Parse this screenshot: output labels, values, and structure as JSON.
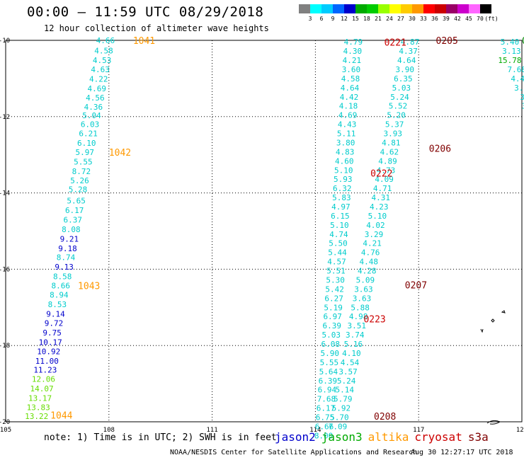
{
  "header": {
    "title": "00:00 — 11:59 UTC 08/29/2018",
    "subtitle": "12 hour collection of altimeter wave heights"
  },
  "colorbar": {
    "colors": [
      "#808080",
      "#00ffff",
      "#00ccff",
      "#0066ff",
      "#0000cc",
      "#00aa00",
      "#00cc00",
      "#99ff00",
      "#ffff00",
      "#ffcc00",
      "#ff9900",
      "#ff0000",
      "#cc0000",
      "#990066",
      "#cc00cc",
      "#ff66ff",
      "#000000"
    ],
    "labels": [
      "3",
      "6",
      "9",
      "12",
      "15",
      "18",
      "21",
      "24",
      "27",
      "30",
      "33",
      "36",
      "39",
      "42",
      "45",
      "70",
      "(ft)"
    ]
  },
  "chart_data": {
    "type": "scatter",
    "x_ticks": [
      "105",
      "108",
      "111",
      "114",
      "117",
      "120"
    ],
    "y_ticks": [
      "-10",
      "-12",
      "-14",
      "-16",
      "-18",
      "-20"
    ],
    "xlim": [
      105,
      120
    ],
    "ylim": [
      -20,
      -10
    ],
    "grid": true,
    "tracks": [
      {
        "satellite": "altika",
        "color": "#ff9900",
        "labels": [
          {
            "text": "1041",
            "lon": 108.7,
            "lat": -10.0
          },
          {
            "text": "1042",
            "lon": 108.0,
            "lat": -12.93
          },
          {
            "text": "1043",
            "lon": 107.1,
            "lat": -16.43
          },
          {
            "text": "1044",
            "lon": 106.3,
            "lat": -19.82
          }
        ]
      },
      {
        "satellite": "cryosat",
        "color": "#cc0000",
        "labels": [
          {
            "text": "0221",
            "lon": 116.0,
            "lat": -10.05
          },
          {
            "text": "0222",
            "lon": 115.6,
            "lat": -13.48
          },
          {
            "text": "0223",
            "lon": 115.4,
            "lat": -17.3
          }
        ]
      },
      {
        "satellite": "s3a",
        "color": "#800000",
        "labels": [
          {
            "text": "0205",
            "lon": 117.5,
            "lat": -10.0
          },
          {
            "text": "0206",
            "lon": 117.3,
            "lat": -12.83
          },
          {
            "text": "0207",
            "lon": 116.6,
            "lat": -16.41
          },
          {
            "text": "0208",
            "lon": 115.7,
            "lat": -19.85
          }
        ]
      },
      {
        "satellite": "jason3",
        "color": "#008800",
        "labels": [
          {
            "text": "0",
            "lon": 120.0,
            "lat": -10.0
          }
        ]
      }
    ],
    "points": [
      {
        "text": "4.66",
        "lon": 107.9,
        "lat": -10.0,
        "c": "#00cccc"
      },
      {
        "text": "4.58",
        "lon": 107.85,
        "lat": -10.27,
        "c": "#00cccc"
      },
      {
        "text": "4.53",
        "lon": 107.8,
        "lat": -10.52,
        "c": "#00cccc"
      },
      {
        "text": "4.63",
        "lon": 107.75,
        "lat": -10.76,
        "c": "#00cccc"
      },
      {
        "text": "4.22",
        "lon": 107.7,
        "lat": -11.01,
        "c": "#00cccc"
      },
      {
        "text": "4.69",
        "lon": 107.65,
        "lat": -11.26,
        "c": "#00cccc"
      },
      {
        "text": "4.56",
        "lon": 107.6,
        "lat": -11.5,
        "c": "#00cccc"
      },
      {
        "text": "4.36",
        "lon": 107.55,
        "lat": -11.74,
        "c": "#00cccc"
      },
      {
        "text": "5.04",
        "lon": 107.5,
        "lat": -11.97,
        "c": "#00cccc"
      },
      {
        "text": "6.03",
        "lon": 107.45,
        "lat": -12.2,
        "c": "#00cccc"
      },
      {
        "text": "6.21",
        "lon": 107.4,
        "lat": -12.44,
        "c": "#00cccc"
      },
      {
        "text": "6.10",
        "lon": 107.35,
        "lat": -12.69,
        "c": "#00cccc"
      },
      {
        "text": "5.97",
        "lon": 107.3,
        "lat": -12.93,
        "c": "#00cccc"
      },
      {
        "text": "5.55",
        "lon": 107.25,
        "lat": -13.18,
        "c": "#00cccc"
      },
      {
        "text": "8.72",
        "lon": 107.2,
        "lat": -13.43,
        "c": "#00cccc"
      },
      {
        "text": "5.26",
        "lon": 107.15,
        "lat": -13.67,
        "c": "#00cccc"
      },
      {
        "text": "5.28",
        "lon": 107.1,
        "lat": -13.91,
        "c": "#00cccc"
      },
      {
        "text": "5.65",
        "lon": 107.05,
        "lat": -14.2,
        "c": "#00cccc"
      },
      {
        "text": "6.17",
        "lon": 107.0,
        "lat": -14.45,
        "c": "#00cccc"
      },
      {
        "text": "6.37",
        "lon": 106.95,
        "lat": -14.7,
        "c": "#00cccc"
      },
      {
        "text": "8.08",
        "lon": 106.9,
        "lat": -14.95,
        "c": "#00cccc"
      },
      {
        "text": "9.21",
        "lon": 106.85,
        "lat": -15.2,
        "c": "#0000cc"
      },
      {
        "text": "9.18",
        "lon": 106.8,
        "lat": -15.45,
        "c": "#0000cc"
      },
      {
        "text": "8.74",
        "lon": 106.75,
        "lat": -15.69,
        "c": "#00cccc"
      },
      {
        "text": "9.13",
        "lon": 106.7,
        "lat": -15.94,
        "c": "#0000cc"
      },
      {
        "text": "8.58",
        "lon": 106.65,
        "lat": -16.19,
        "c": "#00cccc"
      },
      {
        "text": "8.66",
        "lon": 106.6,
        "lat": -16.43,
        "c": "#00cccc"
      },
      {
        "text": "8.94",
        "lon": 106.55,
        "lat": -16.67,
        "c": "#00cccc"
      },
      {
        "text": "8.53",
        "lon": 106.5,
        "lat": -16.92,
        "c": "#00cccc"
      },
      {
        "text": "9.14",
        "lon": 106.45,
        "lat": -17.17,
        "c": "#0000cc"
      },
      {
        "text": "9.72",
        "lon": 106.4,
        "lat": -17.41,
        "c": "#0000cc"
      },
      {
        "text": "9.75",
        "lon": 106.35,
        "lat": -17.66,
        "c": "#0000cc"
      },
      {
        "text": "10.17",
        "lon": 106.3,
        "lat": -17.91,
        "c": "#0000cc"
      },
      {
        "text": "10.92",
        "lon": 106.25,
        "lat": -18.15,
        "c": "#0000cc"
      },
      {
        "text": "11.00",
        "lon": 106.2,
        "lat": -18.4,
        "c": "#0000cc"
      },
      {
        "text": "11.23",
        "lon": 106.15,
        "lat": -18.64,
        "c": "#0000cc"
      },
      {
        "text": "12.06",
        "lon": 106.1,
        "lat": -18.88,
        "c": "#66dd00"
      },
      {
        "text": "14.07",
        "lon": 106.05,
        "lat": -19.13,
        "c": "#66dd00"
      },
      {
        "text": "13.17",
        "lon": 106.0,
        "lat": -19.38,
        "c": "#66dd00"
      },
      {
        "text": "13.83",
        "lon": 105.95,
        "lat": -19.62,
        "c": "#66dd00"
      },
      {
        "text": "13.22",
        "lon": 105.9,
        "lat": -19.85,
        "c": "#66dd00"
      },
      {
        "text": "4.79",
        "lon": 115.1,
        "lat": -10.04,
        "c": "#00cccc"
      },
      {
        "text": "4.30",
        "lon": 115.08,
        "lat": -10.28,
        "c": "#00cccc"
      },
      {
        "text": "4.21",
        "lon": 115.06,
        "lat": -10.52,
        "c": "#00cccc"
      },
      {
        "text": "3.60",
        "lon": 115.04,
        "lat": -10.76,
        "c": "#00cccc"
      },
      {
        "text": "4.58",
        "lon": 115.02,
        "lat": -11.0,
        "c": "#00cccc"
      },
      {
        "text": "4.64",
        "lon": 115.0,
        "lat": -11.24,
        "c": "#00cccc"
      },
      {
        "text": "4.42",
        "lon": 114.98,
        "lat": -11.48,
        "c": "#00cccc"
      },
      {
        "text": "4.18",
        "lon": 114.96,
        "lat": -11.72,
        "c": "#00cccc"
      },
      {
        "text": "4.69",
        "lon": 114.94,
        "lat": -11.96,
        "c": "#00cccc"
      },
      {
        "text": "4.43",
        "lon": 114.92,
        "lat": -12.2,
        "c": "#00cccc"
      },
      {
        "text": "5.11",
        "lon": 114.9,
        "lat": -12.44,
        "c": "#00cccc"
      },
      {
        "text": "3.80",
        "lon": 114.88,
        "lat": -12.68,
        "c": "#00cccc"
      },
      {
        "text": "4.83",
        "lon": 114.86,
        "lat": -12.92,
        "c": "#00cccc"
      },
      {
        "text": "4.60",
        "lon": 114.84,
        "lat": -13.16,
        "c": "#00cccc"
      },
      {
        "text": "5.10",
        "lon": 114.82,
        "lat": -13.4,
        "c": "#00cccc"
      },
      {
        "text": "5.93",
        "lon": 114.8,
        "lat": -13.64,
        "c": "#00cccc"
      },
      {
        "text": "6.32",
        "lon": 114.78,
        "lat": -13.88,
        "c": "#00cccc"
      },
      {
        "text": "5.83",
        "lon": 114.76,
        "lat": -14.12,
        "c": "#00cccc"
      },
      {
        "text": "4.97",
        "lon": 114.74,
        "lat": -14.36,
        "c": "#00cccc"
      },
      {
        "text": "6.15",
        "lon": 114.72,
        "lat": -14.6,
        "c": "#00cccc"
      },
      {
        "text": "5.10",
        "lon": 114.7,
        "lat": -14.84,
        "c": "#00cccc"
      },
      {
        "text": "4.74",
        "lon": 114.68,
        "lat": -15.08,
        "c": "#00cccc"
      },
      {
        "text": "5.50",
        "lon": 114.66,
        "lat": -15.32,
        "c": "#00cccc"
      },
      {
        "text": "5.44",
        "lon": 114.64,
        "lat": -15.56,
        "c": "#00cccc"
      },
      {
        "text": "4.57",
        "lon": 114.62,
        "lat": -15.8,
        "c": "#00cccc"
      },
      {
        "text": "5.51",
        "lon": 114.6,
        "lat": -16.04,
        "c": "#00cccc"
      },
      {
        "text": "5.30",
        "lon": 114.58,
        "lat": -16.28,
        "c": "#00cccc"
      },
      {
        "text": "5.42",
        "lon": 114.56,
        "lat": -16.52,
        "c": "#00cccc"
      },
      {
        "text": "6.27",
        "lon": 114.54,
        "lat": -16.76,
        "c": "#00cccc"
      },
      {
        "text": "5.19",
        "lon": 114.52,
        "lat": -17.0,
        "c": "#00cccc"
      },
      {
        "text": "6.97",
        "lon": 114.5,
        "lat": -17.24,
        "c": "#00cccc"
      },
      {
        "text": "6.39",
        "lon": 114.48,
        "lat": -17.48,
        "c": "#00cccc"
      },
      {
        "text": "5.03",
        "lon": 114.46,
        "lat": -17.72,
        "c": "#00cccc"
      },
      {
        "text": "6.08",
        "lon": 114.44,
        "lat": -17.96,
        "c": "#00cccc"
      },
      {
        "text": "5.90",
        "lon": 114.42,
        "lat": -18.2,
        "c": "#00cccc"
      },
      {
        "text": "5.55",
        "lon": 114.4,
        "lat": -18.44,
        "c": "#00cccc"
      },
      {
        "text": "5.64",
        "lon": 114.38,
        "lat": -18.68,
        "c": "#00cccc"
      },
      {
        "text": "6.39",
        "lon": 114.36,
        "lat": -18.92,
        "c": "#00cccc"
      },
      {
        "text": "6.94",
        "lon": 114.34,
        "lat": -19.16,
        "c": "#00cccc"
      },
      {
        "text": "7.68",
        "lon": 114.32,
        "lat": -19.4,
        "c": "#00cccc"
      },
      {
        "text": "6.17",
        "lon": 114.3,
        "lat": -19.64,
        "c": "#00cccc"
      },
      {
        "text": "6.75",
        "lon": 114.28,
        "lat": -19.88,
        "c": "#00cccc"
      },
      {
        "text": "6.66",
        "lon": 114.26,
        "lat": -20.12,
        "c": "#00cccc"
      },
      {
        "text": "8.00",
        "lon": 114.24,
        "lat": -20.36,
        "c": "#00cccc"
      },
      {
        "text": "4.87",
        "lon": 116.75,
        "lat": -10.04,
        "c": "#00cccc"
      },
      {
        "text": "4.37",
        "lon": 116.7,
        "lat": -10.28,
        "c": "#00cccc"
      },
      {
        "text": "4.64",
        "lon": 116.65,
        "lat": -10.52,
        "c": "#00cccc"
      },
      {
        "text": "3.90",
        "lon": 116.6,
        "lat": -10.76,
        "c": "#00cccc"
      },
      {
        "text": "6.35",
        "lon": 116.55,
        "lat": -11.0,
        "c": "#00cccc"
      },
      {
        "text": "5.03",
        "lon": 116.5,
        "lat": -11.24,
        "c": "#00cccc"
      },
      {
        "text": "5.24",
        "lon": 116.45,
        "lat": -11.48,
        "c": "#00cccc"
      },
      {
        "text": "5.52",
        "lon": 116.4,
        "lat": -11.72,
        "c": "#00cccc"
      },
      {
        "text": "5.20",
        "lon": 116.35,
        "lat": -11.96,
        "c": "#00cccc"
      },
      {
        "text": "5.37",
        "lon": 116.3,
        "lat": -12.2,
        "c": "#00cccc"
      },
      {
        "text": "3.93",
        "lon": 116.25,
        "lat": -12.44,
        "c": "#00cccc"
      },
      {
        "text": "4.81",
        "lon": 116.2,
        "lat": -12.68,
        "c": "#00cccc"
      },
      {
        "text": "4.62",
        "lon": 116.15,
        "lat": -12.92,
        "c": "#00cccc"
      },
      {
        "text": "4.89",
        "lon": 116.1,
        "lat": -13.16,
        "c": "#00cccc"
      },
      {
        "text": "4.73",
        "lon": 116.05,
        "lat": -13.4,
        "c": "#00cccc"
      },
      {
        "text": "4.09",
        "lon": 116.0,
        "lat": -13.64,
        "c": "#00cccc"
      },
      {
        "text": "4.71",
        "lon": 115.95,
        "lat": -13.88,
        "c": "#00cccc"
      },
      {
        "text": "4.31",
        "lon": 115.9,
        "lat": -14.12,
        "c": "#00cccc"
      },
      {
        "text": "4.23",
        "lon": 115.85,
        "lat": -14.36,
        "c": "#00cccc"
      },
      {
        "text": "5.10",
        "lon": 115.8,
        "lat": -14.6,
        "c": "#00cccc"
      },
      {
        "text": "4.02",
        "lon": 115.75,
        "lat": -14.84,
        "c": "#00cccc"
      },
      {
        "text": "3.29",
        "lon": 115.7,
        "lat": -15.08,
        "c": "#00cccc"
      },
      {
        "text": "4.21",
        "lon": 115.65,
        "lat": -15.32,
        "c": "#00cccc"
      },
      {
        "text": "4.76",
        "lon": 115.6,
        "lat": -15.56,
        "c": "#00cccc"
      },
      {
        "text": "4.48",
        "lon": 115.55,
        "lat": -15.8,
        "c": "#00cccc"
      },
      {
        "text": "4.28",
        "lon": 115.5,
        "lat": -16.04,
        "c": "#00cccc"
      },
      {
        "text": "5.09",
        "lon": 115.45,
        "lat": -16.28,
        "c": "#00cccc"
      },
      {
        "text": "3.63",
        "lon": 115.4,
        "lat": -16.52,
        "c": "#00cccc"
      },
      {
        "text": "3.63",
        "lon": 115.35,
        "lat": -16.76,
        "c": "#00cccc"
      },
      {
        "text": "5.88",
        "lon": 115.3,
        "lat": -17.0,
        "c": "#00cccc"
      },
      {
        "text": "4.98",
        "lon": 115.25,
        "lat": -17.24,
        "c": "#00cccc"
      },
      {
        "text": "3.51",
        "lon": 115.2,
        "lat": -17.48,
        "c": "#00cccc"
      },
      {
        "text": "3.74",
        "lon": 115.15,
        "lat": -17.72,
        "c": "#00cccc"
      },
      {
        "text": "5.16",
        "lon": 115.1,
        "lat": -17.96,
        "c": "#00cccc"
      },
      {
        "text": "4.10",
        "lon": 115.05,
        "lat": -18.2,
        "c": "#00cccc"
      },
      {
        "text": "4.54",
        "lon": 115.0,
        "lat": -18.44,
        "c": "#00cccc"
      },
      {
        "text": "3.57",
        "lon": 114.95,
        "lat": -18.68,
        "c": "#00cccc"
      },
      {
        "text": "5.24",
        "lon": 114.9,
        "lat": -18.92,
        "c": "#00cccc"
      },
      {
        "text": "5.14",
        "lon": 114.85,
        "lat": -19.16,
        "c": "#00cccc"
      },
      {
        "text": "5.79",
        "lon": 114.8,
        "lat": -19.4,
        "c": "#00cccc"
      },
      {
        "text": "5.92",
        "lon": 114.75,
        "lat": -19.64,
        "c": "#00cccc"
      },
      {
        "text": "5.70",
        "lon": 114.7,
        "lat": -19.88,
        "c": "#00cccc"
      },
      {
        "text": "7.09",
        "lon": 114.65,
        "lat": -20.12,
        "c": "#00cccc"
      },
      {
        "text": "5.40",
        "lon": 119.65,
        "lat": -10.04,
        "c": "#00cccc"
      },
      {
        "text": "3.13",
        "lon": 119.7,
        "lat": -10.28,
        "c": "#00cccc"
      },
      {
        "text": "15.78",
        "lon": 119.65,
        "lat": -10.52,
        "c": "#00aa00"
      },
      {
        "text": "7.68",
        "lon": 119.85,
        "lat": -10.76,
        "c": "#00cccc"
      },
      {
        "text": "4.42",
        "lon": 119.95,
        "lat": -11.0,
        "c": "#00cccc"
      },
      {
        "text": "3.89",
        "lon": 120.05,
        "lat": -11.24,
        "c": "#00cccc"
      },
      {
        "text": "3.5",
        "lon": 120.15,
        "lat": -11.48,
        "c": "#00cccc"
      },
      {
        "text": "3.2",
        "lon": 120.2,
        "lat": -11.72,
        "c": "#00cccc"
      },
      {
        "text": "4.",
        "lon": 120.25,
        "lat": -11.96,
        "c": "#00cccc"
      },
      {
        "text": "3",
        "lon": 120.3,
        "lat": -12.2,
        "c": "#00cccc"
      }
    ]
  },
  "legend": [
    {
      "name": "jason2",
      "color": "#0000cc"
    },
    {
      "name": "jason3",
      "color": "#00aa00"
    },
    {
      "name": "altika",
      "color": "#ff9900"
    },
    {
      "name": "cryosat",
      "color": "#cc0000"
    },
    {
      "name": "s3a",
      "color": "#800000"
    }
  ],
  "note": "note: 1) Time is in UTC; 2) SWH is in feet",
  "footer": "NOAA/NESDIS Center for Satellite Applications and Research",
  "stamp": "Aug 30 12:27:17 UTC 2018"
}
